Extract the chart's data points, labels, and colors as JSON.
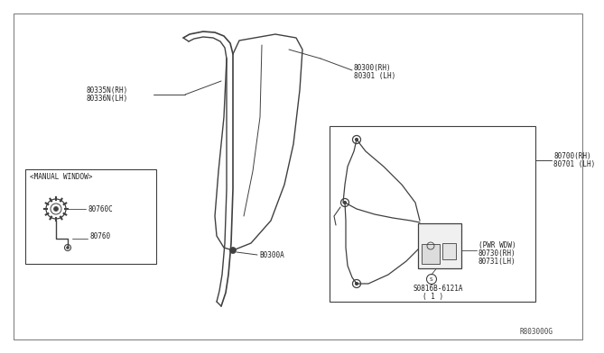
{
  "bg_color": "#ffffff",
  "line_color": "#404040",
  "text_color": "#202020",
  "fig_ref": "R803000G",
  "labels": {
    "80335N_RH": "80335N(RH)",
    "80336N_LH": "80336N(LH)",
    "80300_RH": "80300(RH)",
    "80301_LH": "80301 (LH)",
    "80300A": "B0300A",
    "80700_RH": "80700(RH)",
    "80701_LH": "80701 (LH)",
    "80730_RH": "80730(RH)",
    "80731_LH": "80731(LH)",
    "pwr_wdw": "(PWR WDW)",
    "manual_window": "<MANUAL WINDOW>",
    "80760C": "80760C",
    "80760": "80760",
    "screw_label": "S0816B-6121A",
    "screw_qty": "( 1 )"
  },
  "font_size": 6.0,
  "small_font": 5.5,
  "tiny_font": 5.0
}
